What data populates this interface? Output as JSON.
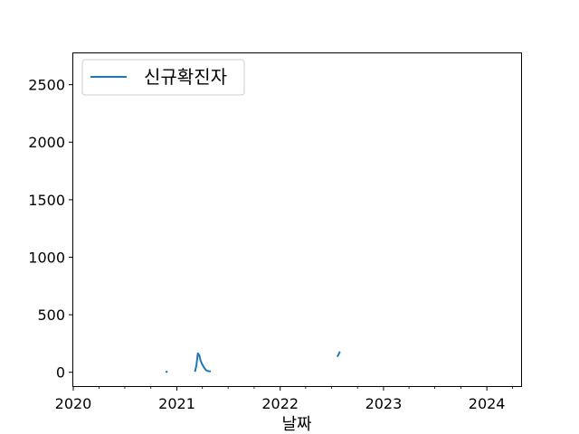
{
  "chart_data": {
    "type": "line",
    "xlabel": "날짜",
    "ylabel": "",
    "title": "",
    "xlim": [
      "2020-01-01",
      "2024-05-01"
    ],
    "ylim": [
      -120,
      2780
    ],
    "x_ticks": [
      "2020",
      "2021",
      "2022",
      "2023",
      "2024"
    ],
    "y_ticks": [
      0,
      500,
      1000,
      1500,
      2000,
      2500
    ],
    "legend": {
      "position": "upper left",
      "entries": [
        "신규확진자"
      ]
    },
    "grid": false,
    "series": [
      {
        "name": "신규확진자",
        "color": "#1f77b4",
        "segments": [
          [
            {
              "x": "2020-11-22",
              "y": 5
            },
            {
              "x": "2020-11-29",
              "y": 3
            }
          ],
          [
            {
              "x": "2021-03-06",
              "y": 5
            },
            {
              "x": "2021-03-11",
              "y": 60
            },
            {
              "x": "2021-03-16",
              "y": 165
            },
            {
              "x": "2021-03-21",
              "y": 150
            },
            {
              "x": "2021-03-26",
              "y": 100
            },
            {
              "x": "2021-03-31",
              "y": 70
            },
            {
              "x": "2021-04-07",
              "y": 40
            },
            {
              "x": "2021-04-14",
              "y": 18
            },
            {
              "x": "2021-04-22",
              "y": 10
            },
            {
              "x": "2021-05-01",
              "y": 8
            }
          ],
          [
            {
              "x": "2022-07-22",
              "y": 135
            },
            {
              "x": "2022-07-27",
              "y": 160
            },
            {
              "x": "2022-07-31",
              "y": 180
            }
          ]
        ]
      }
    ]
  }
}
